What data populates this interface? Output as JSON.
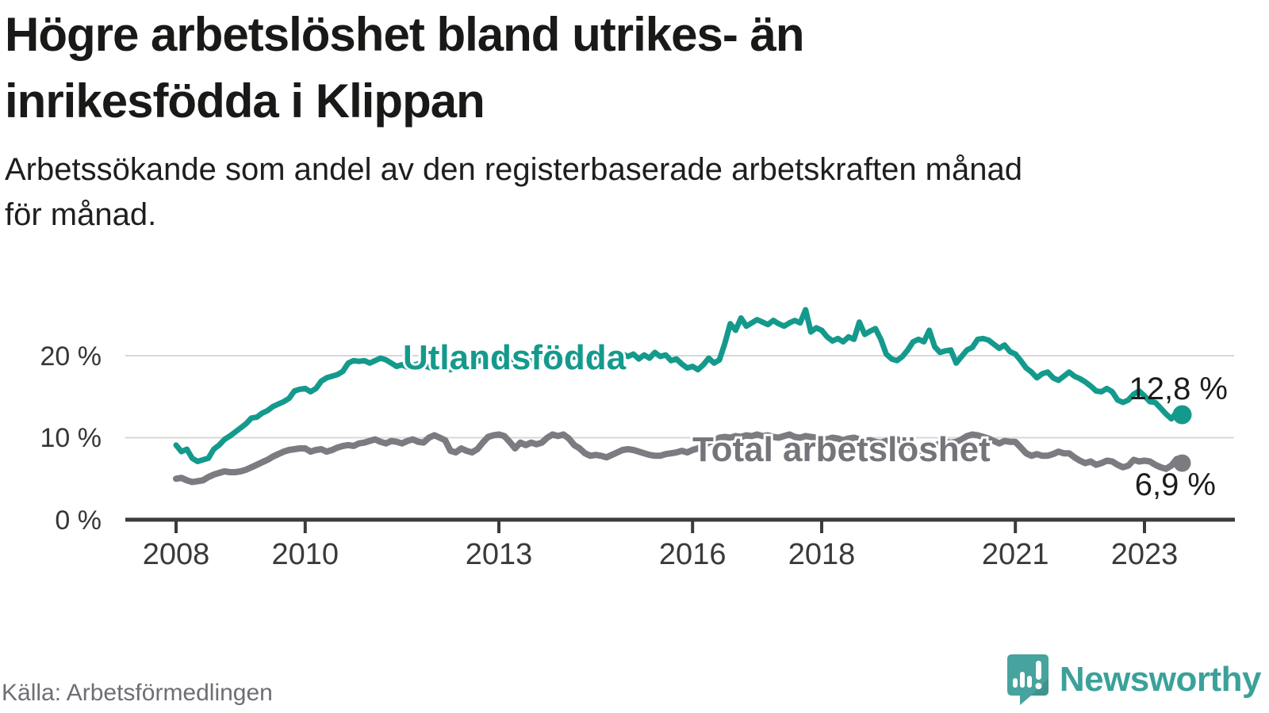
{
  "header": {
    "title_line1": "Högre arbetslöshet bland utrikes- än",
    "title_line2": "inrikesfödda i Klippan",
    "subtitle_line1": "Arbetssökande som andel av den registerbaserade arbetskraften månad",
    "subtitle_line2": "för månad."
  },
  "footer": {
    "source": "Källa: Arbetsförmedlingen",
    "brand": "Newsworthy"
  },
  "chart_data": {
    "type": "line",
    "title": "Högre arbetslöshet bland utrikes- än inrikesfödda i Klippan",
    "subtitle": "Arbetssökande som andel av den registerbaserade arbetskraften månad för månad.",
    "unit": "%",
    "frequency": "monthly",
    "x_start": {
      "year": 2008,
      "month": 1
    },
    "x_end": {
      "year": 2023,
      "month": 8
    },
    "ylim": [
      0,
      27
    ],
    "grid": "horizontal",
    "legend_position": "inline-labels",
    "y_ticks": [
      {
        "value": 0,
        "label": "0 %"
      },
      {
        "value": 10,
        "label": "10 %"
      },
      {
        "value": 20,
        "label": "20 %"
      }
    ],
    "x_ticks": [
      {
        "year": 2008,
        "label": "2008"
      },
      {
        "year": 2010,
        "label": "2010"
      },
      {
        "year": 2013,
        "label": "2013"
      },
      {
        "year": 2016,
        "label": "2016"
      },
      {
        "year": 2018,
        "label": "2018"
      },
      {
        "year": 2021,
        "label": "2021"
      },
      {
        "year": 2023,
        "label": "2023"
      }
    ],
    "series": [
      {
        "name": "Utlandsfödda",
        "label": "Utlandsfödda",
        "color": "#149a8c",
        "end_label": "12,8 %",
        "end_value": 12.8,
        "values": [
          9.1,
          8.3,
          8.6,
          7.5,
          7.1,
          7.3,
          7.5,
          8.6,
          9.1,
          9.8,
          10.2,
          10.7,
          11.2,
          11.7,
          12.4,
          12.5,
          13.0,
          13.3,
          13.8,
          14.1,
          14.4,
          14.8,
          15.7,
          15.9,
          16.0,
          15.6,
          16.0,
          16.9,
          17.3,
          17.5,
          17.7,
          18.1,
          19.1,
          19.4,
          19.3,
          19.4,
          19.1,
          19.4,
          19.7,
          19.5,
          19.1,
          18.7,
          18.9,
          18.6,
          18.8,
          19.0,
          18.8,
          18.6,
          18.4,
          18.7,
          18.5,
          18.3,
          18.6,
          18.9,
          19.2,
          19.0,
          19.3,
          19.5,
          19.3,
          19.6,
          19.8,
          19.5,
          19.7,
          19.4,
          19.2,
          19.5,
          19.3,
          19.6,
          19.8,
          19.6,
          19.9,
          20.1,
          19.8,
          19.6,
          19.9,
          19.7,
          19.4,
          19.7,
          19.9,
          19.6,
          19.8,
          20.0,
          19.9,
          20.2,
          19.9,
          20.2,
          19.6,
          20.1,
          19.7,
          20.4,
          19.9,
          20.1,
          19.4,
          19.6,
          19.0,
          18.5,
          18.7,
          18.3,
          18.9,
          19.7,
          19.1,
          19.5,
          21.5,
          23.9,
          23.1,
          24.6,
          23.6,
          24.0,
          24.4,
          24.1,
          23.8,
          24.3,
          23.9,
          23.6,
          24.0,
          24.3,
          24.0,
          25.6,
          22.9,
          23.4,
          23.1,
          22.3,
          21.8,
          22.1,
          21.7,
          22.3,
          22.0,
          24.1,
          22.6,
          23.0,
          23.3,
          22.0,
          20.2,
          19.6,
          19.4,
          19.9,
          20.7,
          21.7,
          22.0,
          21.7,
          23.1,
          21.1,
          20.4,
          20.6,
          20.7,
          19.1,
          19.9,
          20.7,
          21.0,
          22.0,
          22.1,
          21.9,
          21.4,
          20.9,
          21.3,
          20.5,
          20.2,
          19.4,
          18.5,
          18.0,
          17.3,
          17.8,
          18.0,
          17.3,
          17.0,
          17.5,
          18.0,
          17.5,
          17.2,
          16.8,
          16.3,
          15.7,
          15.6,
          16.0,
          15.6,
          14.6,
          14.3,
          14.6,
          15.3,
          15.7,
          15.1,
          14.4,
          14.3,
          13.6,
          12.9,
          12.3,
          13.1,
          12.8
        ]
      },
      {
        "name": "Total arbetslöshet",
        "label": "Total arbetslöshet",
        "color": "#7b7b81",
        "end_label": "6,9 %",
        "end_value": 6.9,
        "values": [
          5.0,
          5.1,
          4.8,
          4.6,
          4.7,
          4.8,
          5.2,
          5.5,
          5.7,
          5.9,
          5.8,
          5.8,
          5.9,
          6.1,
          6.4,
          6.7,
          7.0,
          7.3,
          7.7,
          8.0,
          8.3,
          8.5,
          8.6,
          8.7,
          8.7,
          8.3,
          8.5,
          8.6,
          8.3,
          8.5,
          8.8,
          9.0,
          9.1,
          9.0,
          9.3,
          9.4,
          9.6,
          9.8,
          9.5,
          9.3,
          9.6,
          9.5,
          9.3,
          9.6,
          9.8,
          9.5,
          9.4,
          10.0,
          10.3,
          10.0,
          9.7,
          8.4,
          8.2,
          8.7,
          8.4,
          8.2,
          8.6,
          9.4,
          10.1,
          10.3,
          10.4,
          10.2,
          9.5,
          8.7,
          9.4,
          9.1,
          9.4,
          9.2,
          9.4,
          10.0,
          10.4,
          10.2,
          10.4,
          9.9,
          9.1,
          8.7,
          8.1,
          7.8,
          7.9,
          7.8,
          7.6,
          7.9,
          8.2,
          8.5,
          8.6,
          8.5,
          8.3,
          8.1,
          7.9,
          7.8,
          7.8,
          8.0,
          8.1,
          8.2,
          8.4,
          8.2,
          8.5,
          8.7,
          9.0,
          9.4,
          9.7,
          10.0,
          10.1,
          10.0,
          10.2,
          10.1,
          10.3,
          10.2,
          10.4,
          10.2,
          10.3,
          10.1,
          10.0,
          10.2,
          10.4,
          10.1,
          10.0,
          10.2,
          10.1,
          10.0,
          9.9,
          9.8,
          10.0,
          9.9,
          9.7,
          9.9,
          10.0,
          9.8,
          9.6,
          9.7,
          9.5,
          9.4,
          9.6,
          9.7,
          9.8,
          9.6,
          9.3,
          8.5,
          8.3,
          8.5,
          8.7,
          9.0,
          9.3,
          9.5,
          9.4,
          9.5,
          9.8,
          10.2,
          10.4,
          10.3,
          10.1,
          9.9,
          9.6,
          9.3,
          9.6,
          9.5,
          9.5,
          8.8,
          8.1,
          7.8,
          8.0,
          7.8,
          7.8,
          8.0,
          8.3,
          8.1,
          8.1,
          7.6,
          7.2,
          6.9,
          7.1,
          6.7,
          6.9,
          7.2,
          7.1,
          6.7,
          6.4,
          6.6,
          7.3,
          7.1,
          7.2,
          7.1,
          6.7,
          6.4,
          6.2,
          6.6,
          7.4,
          6.9
        ]
      }
    ]
  }
}
